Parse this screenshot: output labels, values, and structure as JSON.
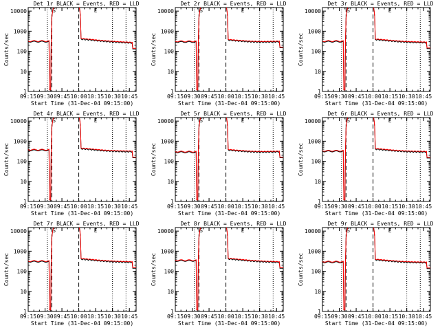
{
  "chart_data": {
    "type": "line",
    "layout": "3x3 grid",
    "xlabel": "Start Time (31-Dec-04 09:15:00)",
    "ylabel": "Counts/sec",
    "y_scale": "log",
    "ylim": [
      1,
      15000
    ],
    "y_ticks": [
      1,
      10,
      100,
      1000,
      10000
    ],
    "y_tick_labels": [
      "1",
      "10",
      "100",
      "1000",
      "10000"
    ],
    "xlim": [
      "09:15",
      "10:51"
    ],
    "x_tick_labels": [
      "09:15",
      "09:30",
      "09:45",
      "10:00",
      "10:15",
      "10:30",
      "10:45"
    ],
    "series_colors": {
      "events": "#000000",
      "lld": "#ff0000"
    },
    "vlines": [
      {
        "time": "09:32",
        "style": "dotted"
      },
      {
        "time": "09:36",
        "style": "dashed"
      },
      {
        "time": "10:00",
        "style": "dashed"
      },
      {
        "time": "10:30",
        "style": "dotted"
      },
      {
        "time": "10:42",
        "style": "dotted"
      }
    ],
    "markers": [
      {
        "time": "09:38",
        "label": "S"
      },
      {
        "time": "10:15",
        "label": "E"
      }
    ],
    "panels": [
      {
        "title": "Det 1r BLACK = Events, RED = LLD",
        "base": 300,
        "mid": 400,
        "end": 260
      },
      {
        "title": "Det 2r BLACK = Events, RED = LLD",
        "base": 290,
        "mid": 360,
        "end": 300
      },
      {
        "title": "Det 3r BLACK = Events, RED = LLD",
        "base": 300,
        "mid": 380,
        "end": 270
      },
      {
        "title": "Det 4r BLACK = Events, RED = LLD",
        "base": 350,
        "mid": 420,
        "end": 300
      },
      {
        "title": "Det 5r BLACK = Events, RED = LLD",
        "base": 280,
        "mid": 360,
        "end": 300
      },
      {
        "title": "Det 6r BLACK = Events, RED = LLD",
        "base": 310,
        "mid": 400,
        "end": 290
      },
      {
        "title": "Det 7r BLACK = Events, RED = LLD",
        "base": 300,
        "mid": 400,
        "end": 280
      },
      {
        "title": "Det 8r BLACK = Events, RED = LLD",
        "base": 330,
        "mid": 410,
        "end": 280
      },
      {
        "title": "Det 9r BLACK = Events, RED = LLD",
        "base": 280,
        "mid": 370,
        "end": 270
      }
    ]
  }
}
